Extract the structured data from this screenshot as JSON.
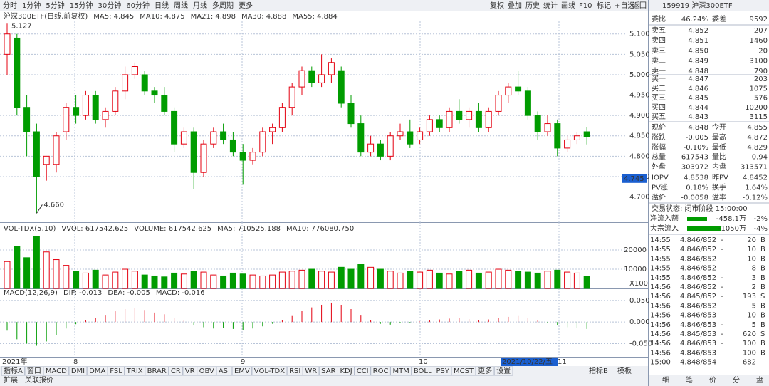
{
  "toolbar": {
    "periods": [
      "分时",
      "1分钟",
      "5分钟",
      "15分钟",
      "30分钟",
      "60分钟",
      "日线",
      "周线",
      "月线",
      "多周期",
      "更多"
    ],
    "tools": [
      "复权",
      "叠加",
      "历史",
      "统计",
      "画线",
      "F10",
      "标记",
      "+自选",
      "返回"
    ]
  },
  "chart_data": {
    "type": "candlestick",
    "title": "沪深300ETF(日线,前复权)",
    "ma_legend": [
      {
        "text": "MA5: 4.845",
        "color": "#1a3fb0"
      },
      {
        "text": "MA10: 4.875",
        "color": "#d000d0"
      },
      {
        "text": "MA21: 4.898",
        "color": "#707070"
      },
      {
        "text": "MA30: 4.888",
        "color": "#a02020"
      },
      {
        "text": "MA55: 4.884",
        "color": "#208020"
      }
    ],
    "up_color": "#e4000f",
    "down_color": "#009c00",
    "ylim": [
      4.645,
      5.145
    ],
    "yticks": [
      {
        "value": 5.1,
        "label": "5.100"
      },
      {
        "value": 5.05,
        "label": "5.050"
      },
      {
        "value": 5.0,
        "label": "5.000"
      },
      {
        "value": 4.95,
        "label": "4.950"
      },
      {
        "value": 4.9,
        "label": "4.900"
      },
      {
        "value": 4.85,
        "label": "4.850"
      },
      {
        "value": 4.8,
        "label": "4.800"
      },
      {
        "value": 4.75,
        "label": "4.750"
      },
      {
        "value": 4.7,
        "label": "4.700"
      }
    ],
    "high_label": "5.127",
    "low_label": "4.660",
    "cursor_price": {
      "value": 4.745,
      "label": "4.745"
    },
    "x_labels": [
      "2021年",
      "8",
      "9",
      "10",
      "11"
    ],
    "cursor_date": "2021/10/22/五",
    "candles": [
      [
        5.05,
        5.127,
        5.0,
        5.1
      ],
      [
        5.09,
        5.1,
        4.9,
        4.92
      ],
      [
        4.92,
        4.95,
        4.8,
        4.86
      ],
      [
        4.86,
        4.88,
        4.66,
        4.75
      ],
      [
        4.78,
        4.8,
        4.74,
        4.8
      ],
      [
        4.78,
        4.86,
        4.76,
        4.85
      ],
      [
        4.86,
        4.93,
        4.84,
        4.92
      ],
      [
        4.92,
        4.95,
        4.88,
        4.9
      ],
      [
        4.9,
        4.96,
        4.89,
        4.95
      ],
      [
        4.95,
        4.96,
        4.88,
        4.89
      ],
      [
        4.89,
        4.92,
        4.87,
        4.91
      ],
      [
        4.91,
        4.97,
        4.9,
        4.96
      ],
      [
        4.96,
        5.02,
        4.94,
        5.0
      ],
      [
        5.0,
        5.03,
        4.99,
        5.02
      ],
      [
        5.0,
        5.01,
        4.95,
        4.96
      ],
      [
        4.96,
        4.97,
        4.93,
        4.95
      ],
      [
        4.95,
        4.97,
        4.9,
        4.91
      ],
      [
        4.91,
        4.92,
        4.81,
        4.83
      ],
      [
        4.83,
        4.87,
        4.82,
        4.86
      ],
      [
        4.86,
        4.87,
        4.72,
        4.76
      ],
      [
        4.76,
        4.84,
        4.75,
        4.83
      ],
      [
        4.83,
        4.87,
        4.82,
        4.86
      ],
      [
        4.86,
        4.88,
        4.83,
        4.84
      ],
      [
        4.84,
        4.86,
        4.8,
        4.81
      ],
      [
        4.81,
        4.83,
        4.73,
        4.79
      ],
      [
        4.79,
        4.82,
        4.78,
        4.81
      ],
      [
        4.81,
        4.87,
        4.8,
        4.86
      ],
      [
        4.86,
        4.88,
        4.83,
        4.87
      ],
      [
        4.87,
        4.93,
        4.86,
        4.92
      ],
      [
        4.92,
        4.98,
        4.9,
        4.97
      ],
      [
        4.97,
        5.02,
        4.95,
        5.01
      ],
      [
        5.01,
        5.02,
        4.97,
        4.98
      ],
      [
        4.98,
        5.05,
        4.97,
        5.0
      ],
      [
        5.0,
        5.04,
        4.98,
        5.03
      ],
      [
        5.01,
        5.02,
        4.92,
        4.93
      ],
      [
        4.93,
        4.95,
        4.87,
        4.88
      ],
      [
        4.88,
        4.9,
        4.8,
        4.81
      ],
      [
        4.81,
        4.85,
        4.8,
        4.83
      ],
      [
        4.83,
        4.84,
        4.79,
        4.8
      ],
      [
        4.8,
        4.86,
        4.79,
        4.85
      ],
      [
        4.85,
        4.88,
        4.84,
        4.86
      ],
      [
        4.86,
        4.89,
        4.82,
        4.83
      ],
      [
        4.84,
        4.87,
        4.83,
        4.86
      ],
      [
        4.86,
        4.9,
        4.85,
        4.89
      ],
      [
        4.89,
        4.9,
        4.86,
        4.87
      ],
      [
        4.87,
        4.92,
        4.86,
        4.91
      ],
      [
        4.91,
        4.94,
        4.88,
        4.89
      ],
      [
        4.89,
        4.92,
        4.87,
        4.91
      ],
      [
        4.91,
        4.93,
        4.86,
        4.87
      ],
      [
        4.87,
        4.92,
        4.86,
        4.91
      ],
      [
        4.91,
        4.96,
        4.9,
        4.95
      ],
      [
        4.95,
        4.98,
        4.93,
        4.97
      ],
      [
        4.97,
        5.01,
        4.95,
        4.96
      ],
      [
        4.96,
        4.97,
        4.89,
        4.9
      ],
      [
        4.9,
        4.91,
        4.84,
        4.86
      ],
      [
        4.86,
        4.9,
        4.85,
        4.88
      ],
      [
        4.88,
        4.89,
        4.8,
        4.82
      ],
      [
        4.82,
        4.85,
        4.81,
        4.84
      ],
      [
        4.84,
        4.86,
        4.83,
        4.85
      ],
      [
        4.86,
        4.872,
        4.829,
        4.848
      ]
    ],
    "volume": {
      "legend": [
        {
          "text": "VOL-TDX(5,10)",
          "color": "#333333"
        },
        {
          "text": "VVOL: 617542.625",
          "color": "#333333"
        },
        {
          "text": "VOLUME: 617542.625",
          "color": "#d000d0"
        },
        {
          "text": "MA5: 710525.188",
          "color": "#d000d0"
        },
        {
          "text": "MA10: 776080.750",
          "color": "#707070"
        }
      ],
      "unit": "X100",
      "ylim": [
        0,
        33000
      ],
      "yticks": [
        20000,
        10000
      ],
      "values": [
        14000,
        22000,
        16000,
        27000,
        19000,
        15000,
        12000,
        9000,
        8000,
        9500,
        7000,
        8500,
        10000,
        9000,
        7000,
        6500,
        6000,
        8000,
        7500,
        9000,
        8500,
        7000,
        6500,
        8000,
        7500,
        7000,
        6500,
        7000,
        8500,
        9000,
        9500,
        10000,
        9000,
        8500,
        11000,
        10000,
        12500,
        11000,
        10000,
        9000,
        8000,
        9000,
        8500,
        9500,
        8000,
        7500,
        9000,
        9500,
        8000,
        8500,
        10000,
        9500,
        9000,
        8500,
        8000,
        9000,
        9500,
        8500,
        8000,
        6175
      ]
    },
    "macd": {
      "legend": [
        {
          "text": "MACD(12,26,9)",
          "color": "#333333"
        },
        {
          "text": "DIF: -0.013",
          "color": "#1a3fb0"
        },
        {
          "text": "DEA: -0.005",
          "color": "#d000d0"
        },
        {
          "text": "MACD: -0.016",
          "color": "#333333"
        }
      ],
      "ylim": [
        -0.079,
        0.073
      ],
      "yticks": [
        {
          "value": 0.05,
          "label": "0.050"
        },
        {
          "value": 0,
          "label": "0.000"
        },
        {
          "value": -0.05,
          "label": "-0.050"
        }
      ],
      "values": [
        -0.02,
        -0.04,
        -0.05,
        -0.055,
        -0.045,
        -0.03,
        -0.015,
        -0.005,
        0.005,
        0.01,
        0.015,
        0.025,
        0.03,
        0.032,
        0.028,
        0.022,
        0.018,
        0.01,
        0.004,
        -0.008,
        -0.012,
        -0.015,
        -0.014,
        -0.016,
        -0.018,
        -0.015,
        -0.01,
        -0.004,
        0.004,
        0.014,
        0.026,
        0.034,
        0.04,
        0.045,
        0.04,
        0.03,
        0.015,
        0.005,
        -0.004,
        -0.006,
        -0.003,
        -0.002,
        0.001,
        0.004,
        0.006,
        0.008,
        0.009,
        0.007,
        0.004,
        0.006,
        0.009,
        0.012,
        0.014,
        0.01,
        0.005,
        -0.002,
        -0.008,
        -0.012,
        -0.014,
        -0.016
      ]
    }
  },
  "tabs": {
    "left": [
      "指标A",
      "窗口",
      "MACD",
      "DMI",
      "DMA",
      "FSL",
      "TRIX",
      "BRAR",
      "CR",
      "VR",
      "OBV",
      "ASI",
      "EMV",
      "VOL-TDX",
      "RSI",
      "WR",
      "SAR",
      "KDJ",
      "CCI",
      "ROC",
      "MTM",
      "BOLL",
      "PSY",
      "MCST",
      "更多",
      "设置"
    ],
    "right": [
      "指标B",
      "模板"
    ],
    "second": [
      "扩展",
      "关联报价"
    ]
  },
  "quote": {
    "header": "159919 沪深300ETF",
    "ratio": [
      {
        "text": "委比",
        "color": "#333333"
      },
      {
        "text": "46.24%",
        "color": "#e4000f"
      },
      {
        "text": "委差",
        "color": "#333333"
      },
      {
        "text": "9592",
        "color": "#e4000f"
      }
    ],
    "sell": [
      [
        "卖五",
        "4.852",
        "207"
      ],
      [
        "卖四",
        "4.851",
        "1460"
      ],
      [
        "卖三",
        "4.850",
        "20"
      ],
      [
        "卖二",
        "4.849",
        "3100"
      ],
      [
        "卖一",
        "4.848",
        "790"
      ]
    ],
    "buy": [
      [
        "买一",
        "4.847",
        "203"
      ],
      [
        "买二",
        "4.846",
        "1075"
      ],
      [
        "买三",
        "4.845",
        "576"
      ],
      [
        "买四",
        "4.844",
        "10200"
      ],
      [
        "买五",
        "4.843",
        "3115"
      ]
    ],
    "stats": [
      [
        {
          "text": "现价",
          "color": "#333333"
        },
        {
          "text": "4.848",
          "color": "#009c00"
        },
        {
          "text": "今开",
          "color": "#333333"
        },
        {
          "text": "4.855",
          "color": "#e4000f"
        }
      ],
      [
        {
          "text": "涨跌",
          "color": "#333333"
        },
        {
          "text": "-0.005",
          "color": "#009c00"
        },
        {
          "text": "最高",
          "color": "#333333"
        },
        {
          "text": "4.872",
          "color": "#e4000f"
        }
      ],
      [
        {
          "text": "涨幅",
          "color": "#333333"
        },
        {
          "text": "-0.10%",
          "color": "#009c00"
        },
        {
          "text": "最低",
          "color": "#333333"
        },
        {
          "text": "4.829",
          "color": "#009c00"
        }
      ],
      [
        {
          "text": "总量",
          "color": "#333333"
        },
        {
          "text": "617543",
          "color": "#c06000"
        },
        {
          "text": "量比",
          "color": "#333333"
        },
        {
          "text": "0.94",
          "color": "#c06000"
        }
      ],
      [
        {
          "text": "外盘",
          "color": "#333333"
        },
        {
          "text": "303972",
          "color": "#e4000f"
        },
        {
          "text": "内盘",
          "color": "#333333"
        },
        {
          "text": "313571",
          "color": "#009c00"
        }
      ],
      [
        {
          "text": "IOPV",
          "color": "#333333"
        },
        {
          "text": "4.8538",
          "color": "#e4000f"
        },
        {
          "text": "昨PV",
          "color": "#333333"
        },
        {
          "text": "4.8452",
          "color": "#333333"
        }
      ],
      [
        {
          "text": "PV涨",
          "color": "#333333"
        },
        {
          "text": "0.18%",
          "color": "#e4000f"
        },
        {
          "text": "换手",
          "color": "#333333"
        },
        {
          "text": "1.64%",
          "color": "#333333"
        }
      ],
      [
        {
          "text": "溢价",
          "color": "#333333"
        },
        {
          "text": "-0.0058",
          "color": "#009c00"
        },
        {
          "text": "溢率",
          "color": "#333333"
        },
        {
          "text": "-0.12%",
          "color": "#009c00"
        }
      ]
    ],
    "status": "交易状态: 闭市阶段 15:00:00",
    "flows": [
      [
        "净流入额",
        "-458.1万",
        "-2%"
      ],
      [
        "大宗流入",
        "-1050万",
        "-4%"
      ]
    ],
    "trades": [
      [
        "14:55",
        "4.846/852",
        "-",
        "20",
        "B"
      ],
      [
        "14:55",
        "4.846/852",
        "-",
        "10",
        "B"
      ],
      [
        "14:55",
        "4.846/852",
        "-",
        "10",
        "B"
      ],
      [
        "14:55",
        "4.846/852",
        "-",
        "8",
        "B"
      ],
      [
        "14:55",
        "4.846/852",
        "-",
        "3",
        "B"
      ],
      [
        "14:56",
        "4.846/852",
        "-",
        "2",
        "B"
      ],
      [
        "14:56",
        "4.845/852",
        "-",
        "193",
        "S"
      ],
      [
        "14:56",
        "4.846/852",
        "-",
        "5",
        "B"
      ],
      [
        "14:56",
        "4.846/853",
        "-",
        "10",
        "B"
      ],
      [
        "14:56",
        "4.846/853",
        "-",
        "5",
        "B"
      ],
      [
        "14:56",
        "4.845/853",
        "-",
        "620",
        "S"
      ],
      [
        "14:56",
        "4.846/853",
        "-",
        "100",
        "B"
      ],
      [
        "14:56",
        "4.846/853",
        "-",
        "100",
        "B"
      ],
      [
        "15:00",
        "4.848/854",
        "-",
        "682",
        ""
      ]
    ],
    "tabs": [
      "细",
      "笔",
      "价",
      "分",
      "盘"
    ]
  }
}
